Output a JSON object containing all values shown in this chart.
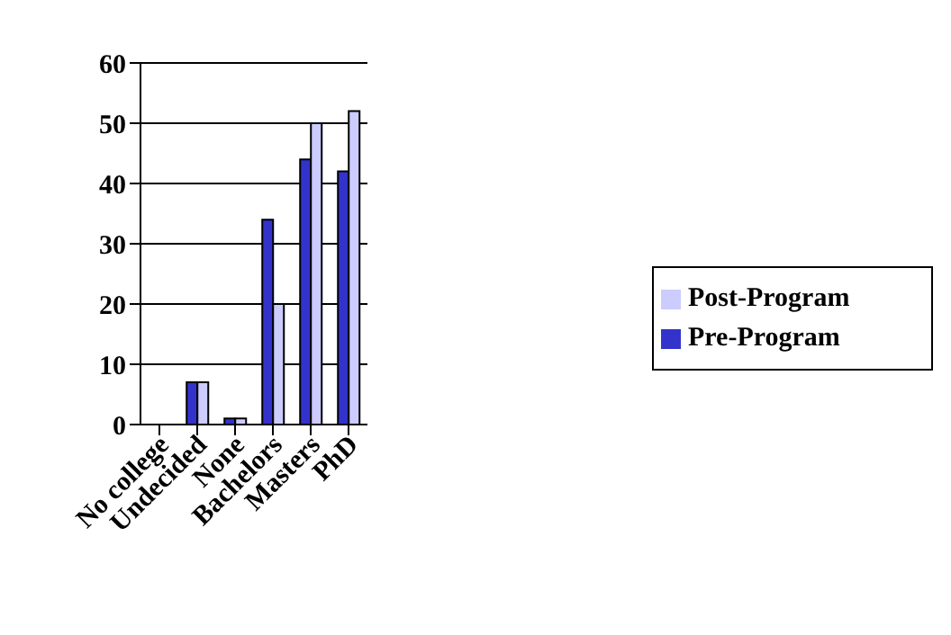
{
  "chart_data": {
    "type": "bar",
    "categories": [
      "No college",
      "Undecided",
      "None",
      "Bachelors",
      "Masters",
      "PhD"
    ],
    "series": [
      {
        "name": "Pre-Program",
        "color": "#3333cc",
        "values": [
          0,
          7,
          1,
          34,
          44,
          42
        ]
      },
      {
        "name": "Post-Program",
        "color": "#ccccff",
        "values": [
          0,
          7,
          1,
          20,
          50,
          52
        ]
      }
    ],
    "ylim": [
      0,
      60
    ],
    "yticks": [
      0,
      10,
      20,
      30,
      40,
      50,
      60
    ],
    "grid": "y",
    "legend": "right"
  }
}
